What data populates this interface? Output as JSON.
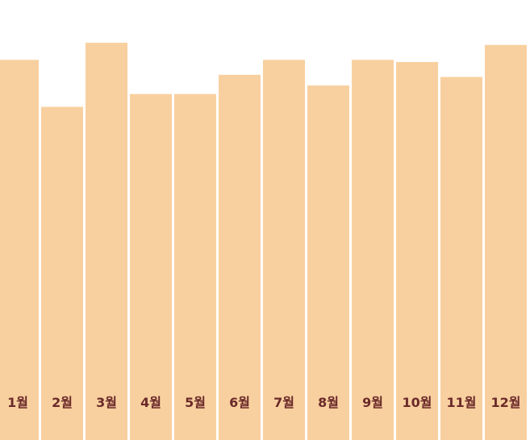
{
  "chart_data": {
    "type": "bar",
    "categories": [
      "1월",
      "2월",
      "3월",
      "4월",
      "5월",
      "6월",
      "7월",
      "8월",
      "9월",
      "10월",
      "11월",
      "12월"
    ],
    "values": [
      89,
      78,
      93,
      81,
      81,
      85.5,
      89,
      83,
      89,
      88.5,
      85,
      92.5
    ],
    "title": "",
    "xlabel": "",
    "ylabel": "",
    "ylim": [
      0,
      100
    ],
    "grid": false,
    "legend": "none",
    "colors": {
      "bar": "#f8d09f",
      "label": "#6b2a2a",
      "background": "#ffffff"
    }
  }
}
